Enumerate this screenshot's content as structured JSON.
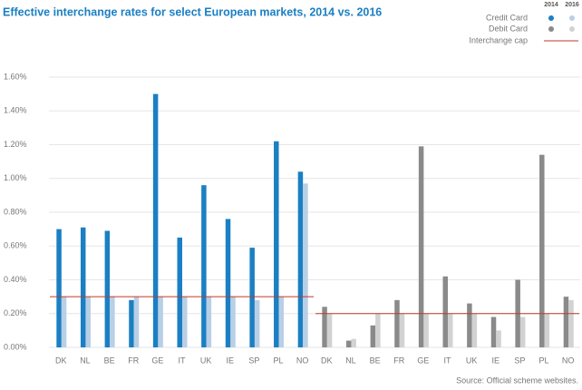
{
  "chart_data": {
    "type": "bar",
    "title": "Effective interchange rates for select European markets, 2014 vs. 2016",
    "series_labels": [
      "2014",
      "2016"
    ],
    "groups": [
      {
        "name": "Credit Card",
        "categories": [
          "DK",
          "NL",
          "BE",
          "FR",
          "GE",
          "IT",
          "UK",
          "IE",
          "SP",
          "PL",
          "NO"
        ],
        "series": [
          {
            "color": "#1b7fc3",
            "values": [
              0.7,
              0.71,
              0.69,
              0.28,
              1.5,
              0.65,
              0.96,
              0.76,
              0.59,
              1.22,
              1.04
            ]
          },
          {
            "color": "#b8cfe5",
            "values": [
              0.3,
              0.3,
              0.3,
              0.3,
              0.3,
              0.3,
              0.3,
              0.3,
              0.28,
              0.3,
              0.97
            ]
          }
        ],
        "cap": 0.3
      },
      {
        "name": "Debit Card",
        "categories": [
          "DK",
          "NL",
          "BE",
          "FR",
          "GE",
          "IT",
          "UK",
          "IE",
          "SP",
          "PL",
          "NO"
        ],
        "series": [
          {
            "color": "#8a8a8a",
            "values": [
              0.24,
              0.04,
              0.13,
              0.28,
              1.19,
              0.42,
              0.26,
              0.18,
              0.4,
              1.14,
              0.3
            ]
          },
          {
            "color": "#d2d2d2",
            "values": [
              0.2,
              0.05,
              0.2,
              0.2,
              0.2,
              0.2,
              0.2,
              0.1,
              0.18,
              0.2,
              0.28
            ]
          }
        ],
        "cap": 0.2
      }
    ],
    "cap_label": "Interchange cap",
    "cap_color": "#c0392b",
    "ylim": [
      0,
      1.6
    ],
    "yticks": [
      {
        "value": 0,
        "label": "0.00%"
      },
      {
        "value": 0.2,
        "label": "0.20%"
      },
      {
        "value": 0.4,
        "label": "0.40%"
      },
      {
        "value": 0.6,
        "label": "0.60%"
      },
      {
        "value": 0.8,
        "label": "0.80%"
      },
      {
        "value": 1.0,
        "label": "1.00%"
      },
      {
        "value": 1.2,
        "label": "1.20%"
      },
      {
        "value": 1.4,
        "label": "1.40%"
      },
      {
        "value": 1.6,
        "label": "1.60%"
      }
    ],
    "grid": true,
    "source": "Source: Official scheme websites."
  }
}
